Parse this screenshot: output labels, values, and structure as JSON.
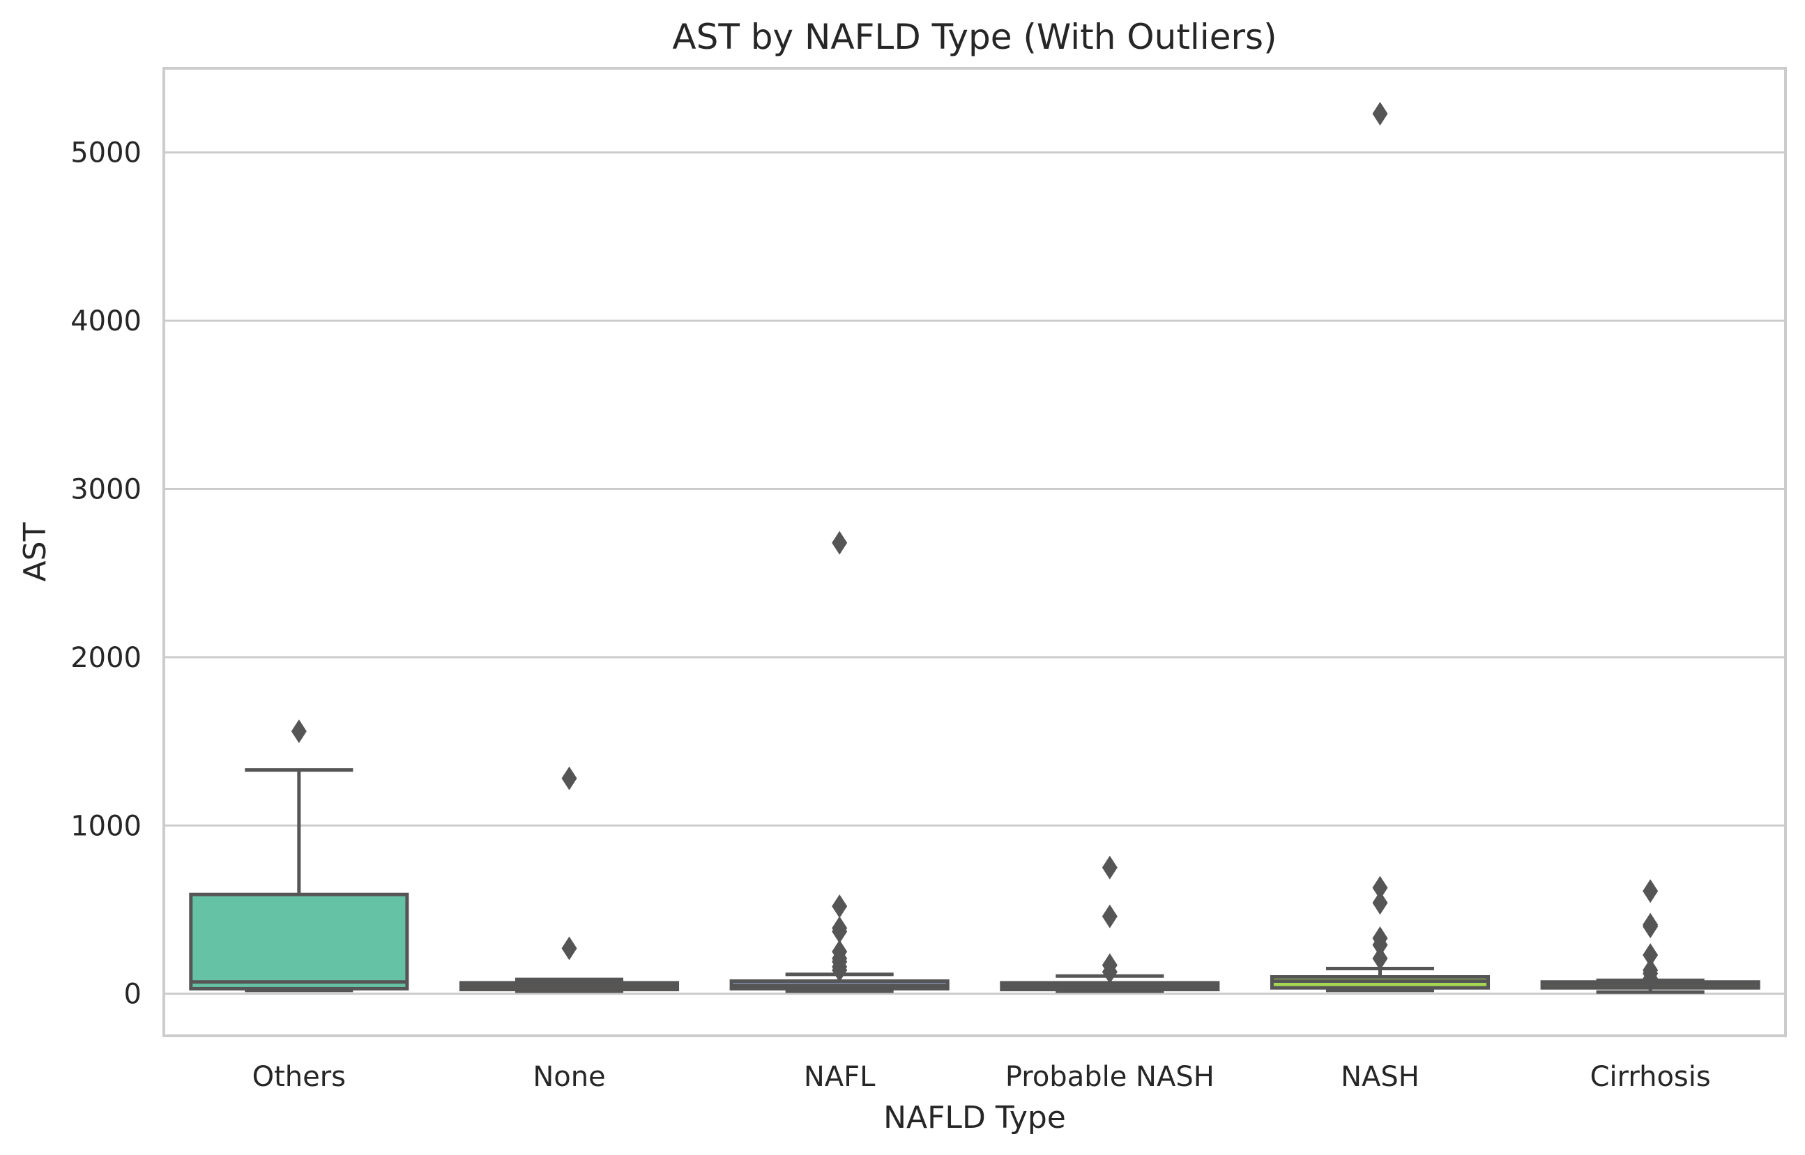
{
  "chart_data": {
    "type": "box",
    "title": "AST by NAFLD Type (With Outliers)",
    "xlabel": "NAFLD Type",
    "ylabel": "AST",
    "ylim": [
      -250,
      5500
    ],
    "yticks": [
      0,
      1000,
      2000,
      3000,
      4000,
      5000
    ],
    "grid": true,
    "legend": "none",
    "categories": [
      "Others",
      "None",
      "NAFL",
      "Probable NASH",
      "NASH",
      "Cirrhosis"
    ],
    "boxes": [
      {
        "category": "Others",
        "whisker_low": 20,
        "q1": 30,
        "median": 70,
        "q3": 590,
        "whisker_high": 1330,
        "outliers": [
          1560
        ],
        "color": "#66c2a5"
      },
      {
        "category": "None",
        "whisker_low": 15,
        "q1": 25,
        "median": 45,
        "q3": 65,
        "whisker_high": 85,
        "outliers": [
          270,
          1280
        ],
        "color": "#fc8d62"
      },
      {
        "category": "NAFL",
        "whisker_low": 15,
        "q1": 30,
        "median": 50,
        "q3": 75,
        "whisker_high": 115,
        "outliers": [
          140,
          160,
          190,
          210,
          250,
          370,
          390,
          520,
          2680
        ],
        "color": "#8da0cb"
      },
      {
        "category": "Probable NASH",
        "whisker_low": 15,
        "q1": 25,
        "median": 45,
        "q3": 65,
        "whisker_high": 105,
        "outliers": [
          130,
          170,
          460,
          750
        ],
        "color": "#e78ac3"
      },
      {
        "category": "NASH",
        "whisker_low": 20,
        "q1": 35,
        "median": 75,
        "q3": 100,
        "whisker_high": 150,
        "outliers": [
          210,
          290,
          330,
          540,
          630,
          5230
        ],
        "color": "#a6d854"
      },
      {
        "category": "Cirrhosis",
        "whisker_low": 10,
        "q1": 35,
        "median": 55,
        "q3": 70,
        "whisker_high": 80,
        "outliers": [
          90,
          120,
          140,
          230,
          400,
          410,
          610
        ],
        "color": "#ffd92f"
      }
    ]
  },
  "colors": {
    "edge": "#555555",
    "grid": "#cccccc",
    "frame": "#cccccc",
    "text": "#262626"
  }
}
